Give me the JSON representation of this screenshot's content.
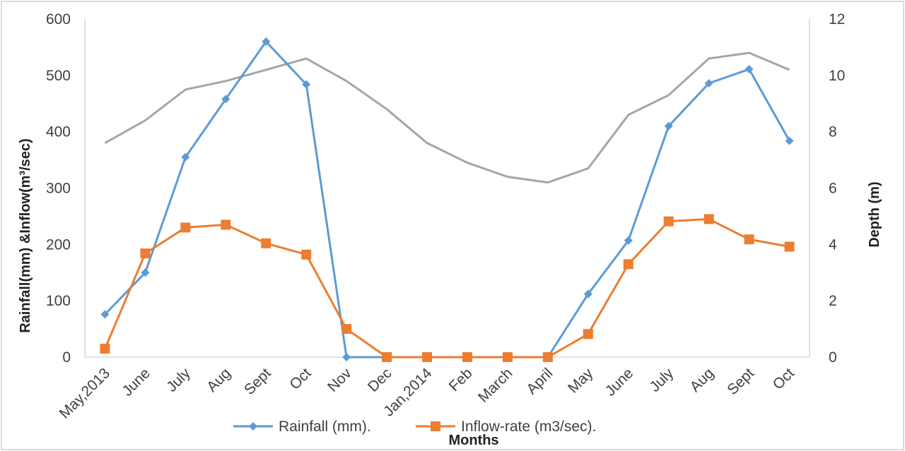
{
  "chart_data": {
    "type": "line",
    "categories": [
      "May,2013",
      "June",
      "July",
      "Aug",
      "Sept",
      "Oct",
      "Nov",
      "Dec",
      "Jan,2014",
      "Feb",
      "March",
      "April",
      "May",
      "June",
      "July",
      "Aug",
      "Sept",
      "Oct"
    ],
    "xlabel": "Months",
    "ylabel": "Rainfall(mm) &Inflow(m³/sec)",
    "y2label": "Depth (m)",
    "ylim": [
      0,
      600
    ],
    "y2lim": [
      0,
      12
    ],
    "yticks": [
      "0",
      "100",
      "200",
      "300",
      "400",
      "500",
      "600"
    ],
    "y2ticks": [
      "0",
      "2",
      "4",
      "6",
      "8",
      "10",
      "12"
    ],
    "grid": false,
    "legend": "bottom",
    "series": [
      {
        "name": "Rainfall (mm).",
        "axis": "left",
        "color": "#5B9BD5",
        "marker": "diamond",
        "values": [
          76,
          150,
          355,
          458,
          560,
          484,
          0,
          0,
          0,
          0,
          0,
          0,
          112,
          207,
          410,
          486,
          511,
          384
        ]
      },
      {
        "name": "Inflow-rate (m3/sec).",
        "axis": "left",
        "color": "#ED7D31",
        "marker": "square",
        "values": [
          15,
          184,
          230,
          235,
          202,
          182,
          50,
          0,
          0,
          0,
          0,
          0,
          41,
          165,
          241,
          245,
          209,
          196
        ]
      },
      {
        "name": "",
        "axis": "right",
        "color": "#A5A5A5",
        "marker": "none",
        "values": [
          7.6,
          8.4,
          9.5,
          9.8,
          10.2,
          10.6,
          9.8,
          8.8,
          7.6,
          6.9,
          6.4,
          6.2,
          6.7,
          8.6,
          9.3,
          10.6,
          10.8,
          10.2
        ]
      }
    ]
  }
}
